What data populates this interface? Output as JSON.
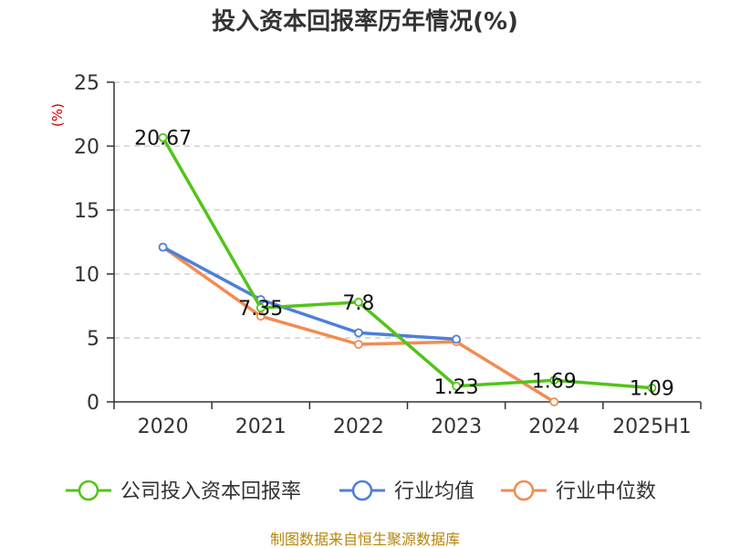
{
  "chart_data": {
    "type": "line",
    "title": "投入资本回报率历年情况(%)",
    "ylabel": "(%)",
    "xlabel": "",
    "categories": [
      "2020",
      "2021",
      "2022",
      "2023",
      "2024",
      "2025H1"
    ],
    "ylim": [
      0,
      25
    ],
    "yticks": [
      0,
      5,
      10,
      15,
      20,
      25
    ],
    "grid": true,
    "legend_position": "bottom",
    "series": [
      {
        "name": "公司投入资本回报率",
        "color": "#52c41a",
        "values": [
          20.67,
          7.35,
          7.8,
          1.23,
          1.69,
          1.09
        ],
        "labels": [
          "20.67",
          "7.35",
          "7.8",
          "1.23",
          "1.69",
          "1.09"
        ]
      },
      {
        "name": "行业均值",
        "color": "#4e7fd8",
        "values": [
          12.1,
          8.0,
          5.4,
          4.9,
          null,
          null
        ]
      },
      {
        "name": "行业中位数",
        "color": "#f28c52",
        "values": [
          12.1,
          6.7,
          4.5,
          4.7,
          0.0,
          null
        ]
      }
    ]
  },
  "source": "制图数据来自恒生聚源数据库"
}
